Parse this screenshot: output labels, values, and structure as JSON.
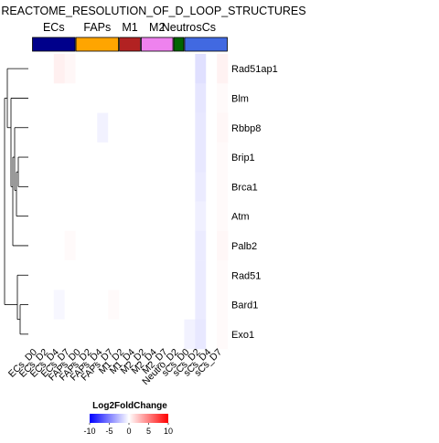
{
  "chart_data": {
    "type": "heatmap",
    "title": "REACTOME_RESOLUTION_OF_D_LOOP_STRUCTURES",
    "rows": [
      "Rad51ap1",
      "Blm",
      "Rbbp8",
      "Brip1",
      "Brca1",
      "Atm",
      "Palb2",
      "Rad51",
      "Bard1",
      "Exo1"
    ],
    "columns": [
      "ECs_D0",
      "ECs_D2",
      "ECs_D4",
      "ECs_D7",
      "FAPs_D0",
      "FAPs_D2",
      "FAPs_D4",
      "FAPs_D7",
      "M1_D2",
      "M1_D4",
      "M2_D2",
      "M2_D4",
      "M2_D7",
      "Neutro_D2",
      "sCs_D0",
      "sCs_D2",
      "sCs_D4",
      "sCs_D7"
    ],
    "groups": [
      {
        "name": "ECs",
        "color": "#00008B",
        "start": 0,
        "count": 4
      },
      {
        "name": "FAPs",
        "color": "#FFA500",
        "start": 4,
        "count": 4
      },
      {
        "name": "M1",
        "color": "#B22222",
        "start": 8,
        "count": 2
      },
      {
        "name": "M2",
        "color": "#EE82EE",
        "start": 10,
        "count": 3
      },
      {
        "name": "Neutro",
        "color": "#006400",
        "start": 13,
        "count": 1
      },
      {
        "name": "sCs",
        "color": "#4169E1",
        "start": 14,
        "count": 4
      }
    ],
    "values": [
      [
        0,
        0,
        0.6,
        0.3,
        0,
        0,
        0,
        0,
        0,
        0,
        0,
        0,
        0,
        0,
        0,
        -1.2,
        0,
        0.5
      ],
      [
        0,
        0,
        0,
        0,
        0,
        0,
        0,
        0,
        0,
        0,
        0,
        0,
        0,
        0,
        0,
        -1.0,
        0,
        0.2
      ],
      [
        0,
        0,
        0,
        0,
        0,
        0,
        -0.5,
        0,
        0,
        0,
        0,
        0,
        0,
        0,
        0,
        -0.9,
        0,
        0.3
      ],
      [
        0,
        0,
        0,
        0,
        0,
        0,
        0,
        0,
        0,
        0,
        0,
        0,
        0,
        0,
        0,
        -0.9,
        0,
        0.2
      ],
      [
        0,
        0,
        0,
        0,
        0,
        0,
        0,
        0,
        0,
        0,
        0,
        0,
        0,
        0,
        0,
        -0.8,
        0,
        0.2
      ],
      [
        0,
        0,
        0,
        0,
        0,
        0,
        0,
        0,
        0,
        0,
        0,
        0,
        0,
        0,
        0,
        -0.6,
        0,
        0.2
      ],
      [
        0,
        0,
        0,
        0.2,
        0,
        0,
        0,
        0,
        0,
        0,
        0,
        0,
        0,
        0,
        0,
        -0.8,
        0,
        0.3
      ],
      [
        0,
        0,
        0,
        0,
        0,
        0,
        0,
        0,
        0,
        0,
        0,
        0,
        0,
        0,
        0,
        -0.8,
        0,
        0.2
      ],
      [
        0,
        0,
        -0.3,
        0,
        0,
        0,
        0,
        0.2,
        0,
        0,
        0,
        0,
        0,
        0,
        0,
        -0.8,
        0,
        0.2
      ],
      [
        0,
        0,
        0,
        0,
        0,
        0,
        0,
        0,
        0,
        0,
        0,
        0,
        0,
        0,
        -0.5,
        -0.9,
        0,
        0.2
      ]
    ],
    "legend": {
      "title": "Log2FoldChange",
      "ticks": [
        -10,
        -5,
        0,
        5,
        10
      ],
      "min": -10,
      "max": 10,
      "low_color": "#0000FF",
      "mid_color": "#FFFFFF",
      "high_color": "#FF0000"
    }
  }
}
